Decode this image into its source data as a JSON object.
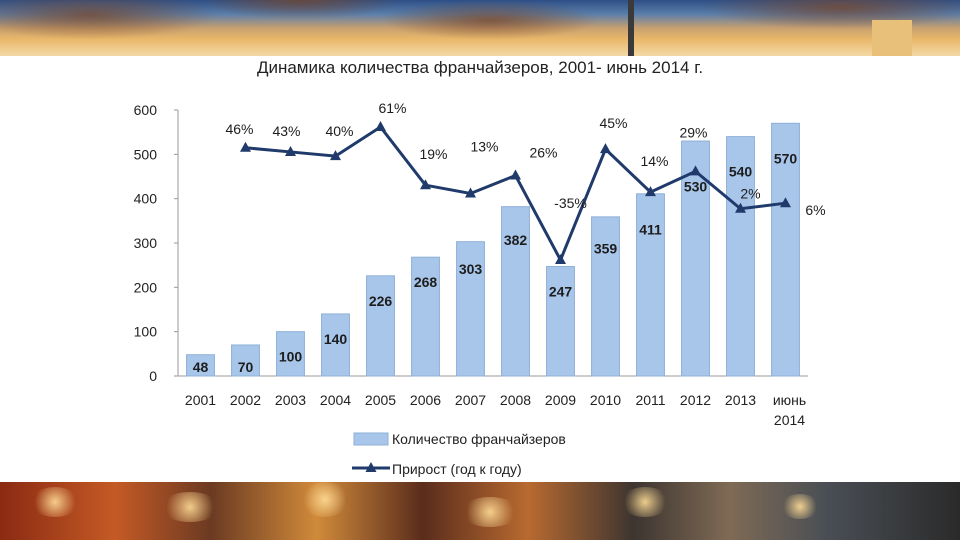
{
  "chart_data": {
    "type": "bar",
    "title": "Динамика количества франчайзеров, 2001- июнь 2014 г.",
    "categories": [
      "2001",
      "2002",
      "2003",
      "2004",
      "2005",
      "2006",
      "2007",
      "2008",
      "2009",
      "2010",
      "2011",
      "2012",
      "2013",
      "июнь 2014"
    ],
    "ylim": [
      0,
      600
    ],
    "yticks": [
      "0",
      "100",
      "200",
      "300",
      "400",
      "500",
      "600"
    ],
    "series": [
      {
        "name": "Количество франчайзеров",
        "kind": "bar",
        "color": "#a8c6ea",
        "values": [
          48,
          70,
          100,
          140,
          226,
          268,
          303,
          382,
          247,
          359,
          411,
          530,
          540,
          570
        ],
        "labels": [
          "48",
          "70",
          "100",
          "140",
          "226",
          "268",
          "303",
          "382",
          "247",
          "359",
          "411",
          "530",
          "540",
          "570"
        ]
      },
      {
        "name": "Прирост (год к году)",
        "kind": "line",
        "color": "#1f3a6b",
        "values": [
          null,
          46,
          43,
          40,
          61,
          19,
          13,
          26,
          -35,
          45,
          14,
          29,
          2,
          6
        ],
        "labels": [
          "",
          "46%",
          "43%",
          "40%",
          "61%",
          "19%",
          "13%",
          "26%",
          "-35%",
          "45%",
          "14%",
          "29%",
          "2%",
          "6%"
        ]
      }
    ],
    "grid": false,
    "legend_position": "bottom"
  }
}
